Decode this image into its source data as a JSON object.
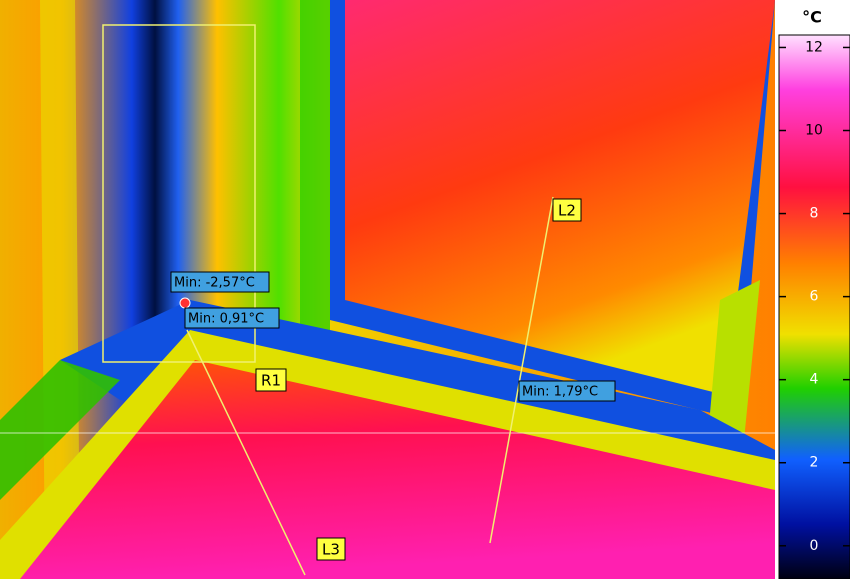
{
  "image": {
    "labels": {
      "r1": "R1",
      "l2": "L2",
      "l3": "L3"
    },
    "measurements": [
      "Min: -2,57°C",
      "Min: 0,91°C",
      "Min: 1,79°C"
    ]
  },
  "scale": {
    "unit": "°C",
    "lim": [
      -0.8,
      12.3
    ],
    "ticks": [
      0,
      2,
      4,
      6,
      8,
      10,
      12
    ]
  }
}
